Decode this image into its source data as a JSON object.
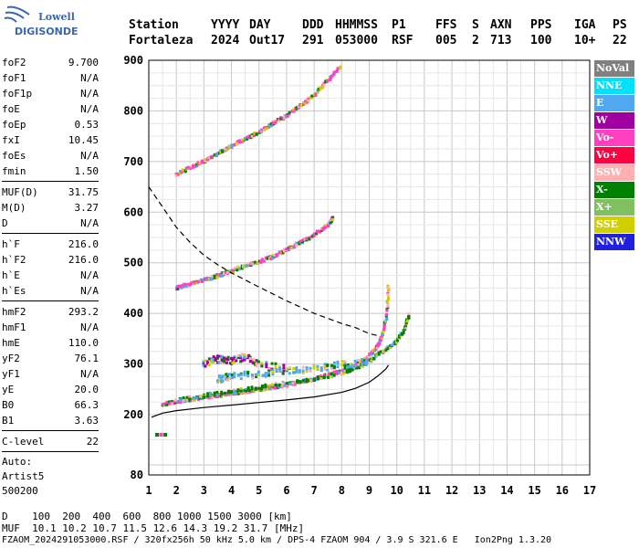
{
  "logo": {
    "line1": "Lowell",
    "line2": "DIGISONDE"
  },
  "header": {
    "row1": [
      "Station",
      "YYYY",
      "DAY",
      "DDD",
      "HHMMSS",
      "P1",
      "FFS",
      "S",
      "AXN",
      "PPS",
      "IGA",
      "PS"
    ],
    "row2": [
      "Fortaleza",
      "2024",
      "Out17",
      "291",
      "053000",
      "RSF",
      "005",
      "2",
      "713",
      "100",
      "10+",
      "22"
    ]
  },
  "params": {
    "group1": [
      {
        "name": "foF2",
        "value": "9.700"
      },
      {
        "name": "foF1",
        "value": "N/A"
      },
      {
        "name": "foF1p",
        "value": "N/A"
      },
      {
        "name": "foE",
        "value": "N/A"
      },
      {
        "name": "foEp",
        "value": "0.53"
      },
      {
        "name": "fxI",
        "value": "10.45"
      },
      {
        "name": "foEs",
        "value": "N/A"
      },
      {
        "name": "fmin",
        "value": "1.50"
      }
    ],
    "group2": [
      {
        "name": "MUF(D)",
        "value": "31.75"
      },
      {
        "name": "M(D)",
        "value": "3.27"
      },
      {
        "name": "D",
        "value": "N/A"
      }
    ],
    "group3": [
      {
        "name": "h`F",
        "value": "216.0"
      },
      {
        "name": "h`F2",
        "value": "216.0"
      },
      {
        "name": "h`E",
        "value": "N/A"
      },
      {
        "name": "h`Es",
        "value": "N/A"
      }
    ],
    "group4": [
      {
        "name": "hmF2",
        "value": "293.2"
      },
      {
        "name": "hmF1",
        "value": "N/A"
      },
      {
        "name": "hmE",
        "value": "110.0"
      },
      {
        "name": "yF2",
        "value": "76.1"
      },
      {
        "name": "yF1",
        "value": "N/A"
      },
      {
        "name": "yE",
        "value": "20.0"
      },
      {
        "name": "B0",
        "value": "66.3"
      },
      {
        "name": "B1",
        "value": "3.63"
      }
    ],
    "group5": [
      {
        "name": "C-level",
        "value": "22"
      }
    ],
    "auto": [
      "Auto:",
      "Artist5",
      "500200"
    ]
  },
  "legend": [
    {
      "label": "NoVal",
      "color": "#808080"
    },
    {
      "label": "NNE",
      "color": "#00e0ff"
    },
    {
      "label": "E",
      "color": "#50a8f0"
    },
    {
      "label": "W",
      "color": "#a000a0"
    },
    {
      "label": "Vo-",
      "color": "#ff40c0"
    },
    {
      "label": "Vo+",
      "color": "#ff0040"
    },
    {
      "label": "SSW",
      "color": "#ffb0b0"
    },
    {
      "label": "X-",
      "color": "#008000"
    },
    {
      "label": "X+",
      "color": "#80c060"
    },
    {
      "label": "SSE",
      "color": "#d0d000"
    },
    {
      "label": "NNW",
      "color": "#2020e0"
    }
  ],
  "bottom": {
    "line1": "D    100  200  400  600  800 1000 1500 3000 [km]",
    "line2": "MUF  10.1 10.2 10.7 11.5 12.6 14.3 19.2 31.7 [MHz]",
    "line3": "FZAOM_2024291053000.RSF / 320fx256h 50 kHz 5.0 km / DPS-4 FZAOM 904 / 3.9 S 321.6 E   Ion2Png 1.3.20"
  },
  "chart_data": {
    "type": "scatter",
    "x_ticks": [
      1,
      2,
      3,
      4,
      5,
      6,
      7,
      8,
      9,
      10,
      11,
      12,
      13,
      14,
      15,
      16,
      17
    ],
    "y_ticks": [
      80,
      200,
      300,
      400,
      500,
      600,
      700,
      800,
      900
    ],
    "xlim": [
      1,
      17
    ],
    "ylim_virtual_height_km": [
      80,
      900
    ],
    "grid": true,
    "traces": [
      {
        "name": "O-trace 1-hop",
        "legend": "Vo-",
        "points": [
          [
            1.5,
            220
          ],
          [
            2,
            225
          ],
          [
            2.5,
            230
          ],
          [
            3,
            234
          ],
          [
            3.5,
            238
          ],
          [
            4,
            242
          ],
          [
            4.5,
            246
          ],
          [
            5,
            250
          ],
          [
            5.5,
            254
          ],
          [
            6,
            259
          ],
          [
            6.5,
            264
          ],
          [
            7,
            270
          ],
          [
            7.5,
            278
          ],
          [
            8,
            286
          ],
          [
            8.5,
            298
          ],
          [
            9,
            315
          ],
          [
            9.3,
            335
          ],
          [
            9.5,
            360
          ],
          [
            9.65,
            400
          ],
          [
            9.7,
            460
          ]
        ]
      },
      {
        "name": "X-trace 1-hop",
        "legend": "X-",
        "points": [
          [
            2,
            228
          ],
          [
            3,
            238
          ],
          [
            4,
            246
          ],
          [
            5,
            254
          ],
          [
            6,
            262
          ],
          [
            7,
            270
          ],
          [
            8,
            282
          ],
          [
            8.5,
            292
          ],
          [
            9,
            305
          ],
          [
            9.5,
            325
          ],
          [
            10,
            345
          ],
          [
            10.3,
            370
          ],
          [
            10.45,
            400
          ]
        ]
      },
      {
        "name": "O-trace 2-hop",
        "legend": "Vo-",
        "points": [
          [
            2,
            450
          ],
          [
            2.5,
            458
          ],
          [
            3,
            466
          ],
          [
            3.5,
            474
          ],
          [
            4,
            484
          ],
          [
            4.5,
            494
          ],
          [
            5,
            502
          ],
          [
            5.5,
            512
          ],
          [
            6,
            525
          ],
          [
            6.5,
            540
          ],
          [
            7,
            555
          ],
          [
            7.5,
            575
          ],
          [
            7.7,
            590
          ]
        ]
      },
      {
        "name": "O-trace 3-hop",
        "legend": "Vo-",
        "points": [
          [
            2,
            675
          ],
          [
            2.5,
            688
          ],
          [
            3,
            700
          ],
          [
            3.5,
            715
          ],
          [
            4,
            730
          ],
          [
            4.5,
            745
          ],
          [
            5,
            758
          ],
          [
            5.5,
            775
          ],
          [
            6,
            790
          ],
          [
            6.5,
            810
          ],
          [
            7,
            830
          ],
          [
            7.5,
            860
          ],
          [
            8,
            890
          ]
        ]
      },
      {
        "name": "oblique W",
        "legend": "W",
        "points": [
          [
            3,
            300
          ],
          [
            3.5,
            310
          ],
          [
            4,
            305
          ],
          [
            4.5,
            315
          ],
          [
            5,
            300
          ],
          [
            6,
            290
          ]
        ]
      },
      {
        "name": "oblique E",
        "legend": "E",
        "points": [
          [
            3.5,
            270
          ],
          [
            4,
            275
          ],
          [
            5,
            280
          ],
          [
            6,
            285
          ],
          [
            7,
            290
          ],
          [
            8,
            300
          ],
          [
            9,
            305
          ]
        ]
      }
    ],
    "profile": {
      "name": "electron density profile",
      "style": "solid",
      "points": [
        [
          1.1,
          195
        ],
        [
          1.5,
          203
        ],
        [
          2,
          208
        ],
        [
          3,
          214
        ],
        [
          4,
          219
        ],
        [
          5,
          224
        ],
        [
          6,
          229
        ],
        [
          7,
          235
        ],
        [
          8,
          244
        ],
        [
          8.5,
          252
        ],
        [
          9,
          264
        ],
        [
          9.3,
          276
        ],
        [
          9.6,
          290
        ],
        [
          9.7,
          298
        ]
      ]
    },
    "muf_curve": {
      "name": "MUF curve",
      "style": "dashed",
      "points": [
        [
          1,
          650
        ],
        [
          1.5,
          610
        ],
        [
          2,
          570
        ],
        [
          2.5,
          540
        ],
        [
          3,
          515
        ],
        [
          3.5,
          496
        ],
        [
          4,
          480
        ],
        [
          5,
          452
        ],
        [
          6,
          425
        ],
        [
          7,
          400
        ],
        [
          8,
          380
        ],
        [
          8.5,
          372
        ],
        [
          9,
          360
        ],
        [
          9.4,
          355
        ]
      ]
    }
  }
}
